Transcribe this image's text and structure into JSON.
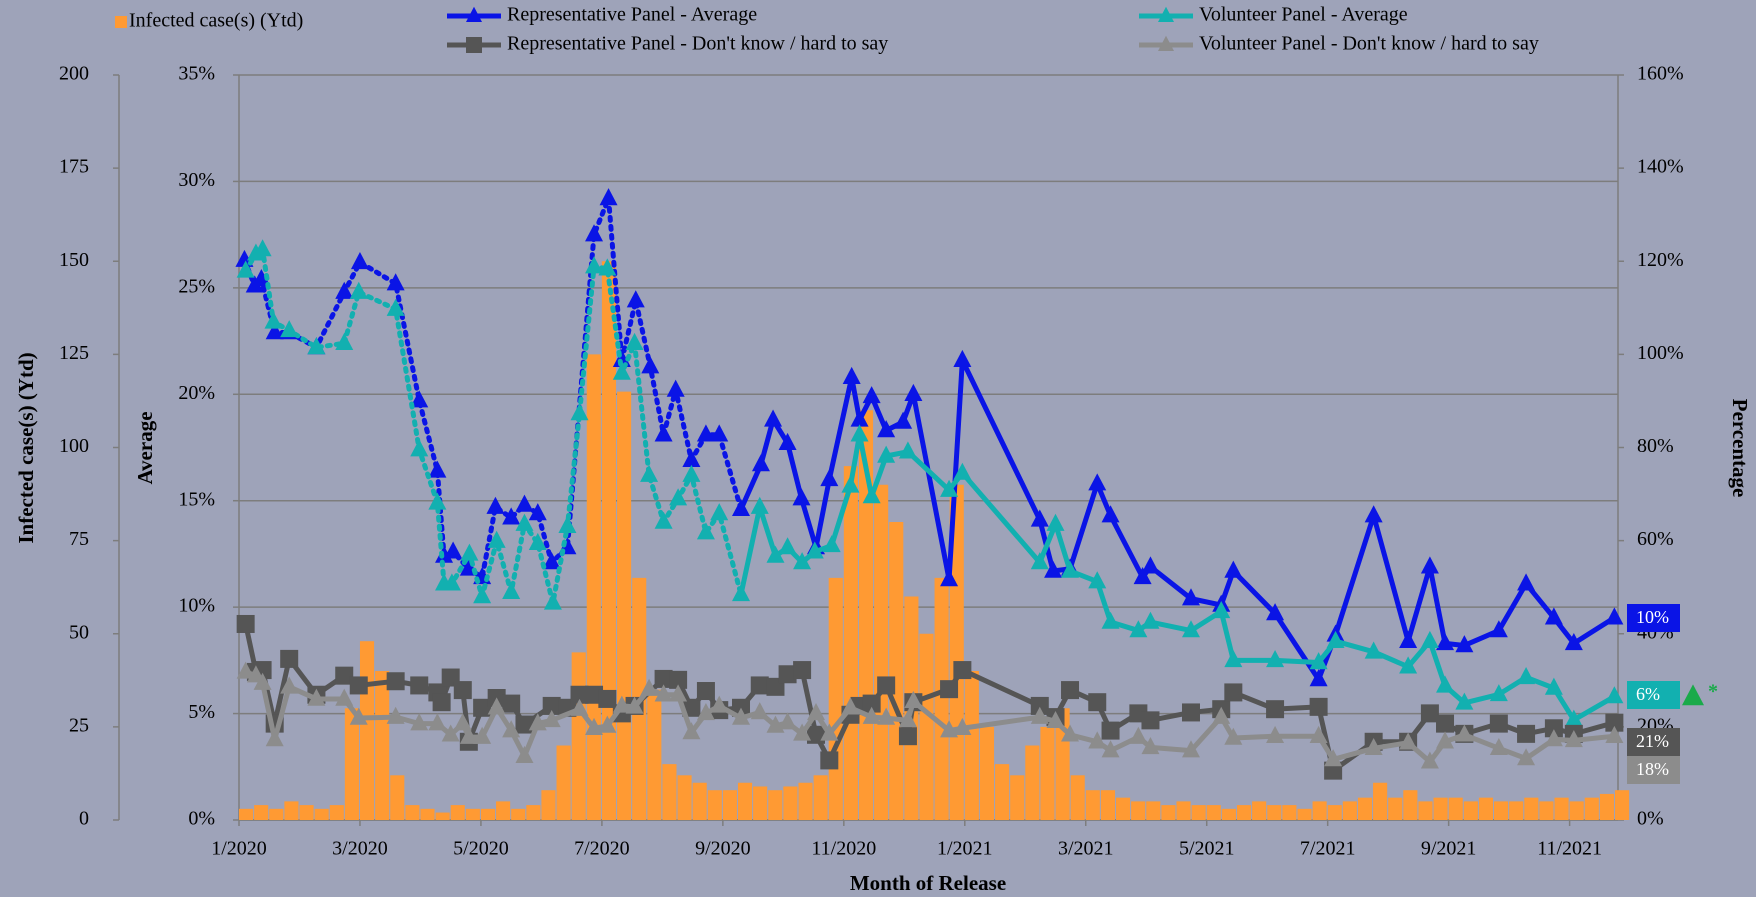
{
  "chart_data": {
    "type": "combo",
    "x_label": "Month of Release",
    "y0_label": "Infected case(s) (Ytd)",
    "y_label": "Average",
    "y2_label": "Percentage",
    "xlim": [
      0,
      22.8
    ],
    "xticks": [
      {
        "value": 0,
        "label": "1/2020"
      },
      {
        "value": 2,
        "label": "3/2020"
      },
      {
        "value": 4,
        "label": "5/2020"
      },
      {
        "value": 6,
        "label": "7/2020"
      },
      {
        "value": 8,
        "label": "9/2020"
      },
      {
        "value": 10,
        "label": "11/2020"
      },
      {
        "value": 12,
        "label": "1/2021"
      },
      {
        "value": 14,
        "label": "3/2021"
      },
      {
        "value": 16,
        "label": "5/2021"
      },
      {
        "value": 18,
        "label": "7/2021"
      },
      {
        "value": 20,
        "label": "9/2021"
      },
      {
        "value": 22,
        "label": "11/2021"
      }
    ],
    "y0lim": [
      0,
      200
    ],
    "y0ticks": [
      0,
      25,
      50,
      75,
      100,
      125,
      150,
      175,
      200
    ],
    "ylim": [
      0,
      35
    ],
    "yticks": [
      {
        "value": 0,
        "label": "0%"
      },
      {
        "value": 5,
        "label": "5%"
      },
      {
        "value": 10,
        "label": "10%"
      },
      {
        "value": 15,
        "label": "15%"
      },
      {
        "value": 20,
        "label": "20%"
      },
      {
        "value": 25,
        "label": "25%"
      },
      {
        "value": 30,
        "label": "30%"
      },
      {
        "value": 35,
        "label": "35%"
      }
    ],
    "y2lim": [
      0,
      160
    ],
    "y2ticks": [
      {
        "value": 0,
        "label": "0%"
      },
      {
        "value": 20,
        "label": "20%"
      },
      {
        "value": 40,
        "label": "40%"
      },
      {
        "value": 60,
        "label": "60%"
      },
      {
        "value": 80,
        "label": "80%"
      },
      {
        "value": 100,
        "label": "100%"
      },
      {
        "value": 120,
        "label": "120%"
      },
      {
        "value": 140,
        "label": "140%"
      },
      {
        "value": 160,
        "label": "160%"
      }
    ],
    "grid": true,
    "series": [
      {
        "name": "Infected case(s) (Ytd)",
        "kind": "bar",
        "axis": "y0",
        "color": "#ff9a33",
        "x": [
          0,
          0.25,
          0.5,
          0.75,
          1,
          1.25,
          1.5,
          1.75,
          2,
          2.25,
          2.5,
          2.75,
          3,
          3.25,
          3.5,
          3.75,
          4,
          4.25,
          4.5,
          4.75,
          5,
          5.25,
          5.5,
          5.75,
          6,
          6.25,
          6.5,
          6.75,
          7,
          7.25,
          7.5,
          7.75,
          8,
          8.25,
          8.5,
          8.75,
          9,
          9.25,
          9.5,
          9.75,
          10,
          10.25,
          10.5,
          10.75,
          11,
          11.25,
          11.5,
          11.75,
          12,
          12.25,
          12.5,
          12.75,
          13,
          13.25,
          13.5,
          13.75,
          14,
          14.25,
          14.5,
          14.75,
          15,
          15.25,
          15.5,
          15.75,
          16,
          16.25,
          16.5,
          16.75,
          17,
          17.25,
          17.5,
          17.75,
          18,
          18.25,
          18.5,
          18.75,
          19,
          19.25,
          19.5,
          19.75,
          20,
          20.25,
          20.5,
          20.75,
          21,
          21.25,
          21.5,
          21.75,
          22,
          22.25,
          22.5,
          22.75
        ],
        "values": [
          3,
          4,
          3,
          5,
          4,
          3,
          4,
          30,
          48,
          40,
          12,
          4,
          3,
          2,
          4,
          3,
          3,
          5,
          3,
          4,
          8,
          20,
          45,
          125,
          150,
          115,
          65,
          35,
          15,
          12,
          10,
          8,
          8,
          10,
          9,
          8,
          9,
          10,
          12,
          65,
          95,
          110,
          90,
          80,
          60,
          50,
          65,
          90,
          40,
          25,
          15,
          12,
          20,
          25,
          30,
          12,
          8,
          8,
          6,
          5,
          5,
          4,
          5,
          4,
          4,
          3,
          4,
          5,
          4,
          4,
          3,
          5,
          4,
          5,
          6,
          10,
          6,
          8,
          5,
          6,
          6,
          5,
          6,
          5,
          5,
          6,
          5,
          6,
          5,
          6,
          7,
          8
        ]
      },
      {
        "name": "Representative Panel - Average",
        "kind": "line",
        "axis": "y",
        "color": "#0a14e6",
        "marker": "triangle",
        "dotted_until": 8.3,
        "end_label": "10%",
        "x": [
          0.09,
          0.26,
          0.37,
          0.59,
          0.83,
          1.28,
          1.74,
          2.0,
          2.59,
          2.98,
          3.28,
          3.39,
          3.54,
          3.8,
          4.02,
          4.24,
          4.5,
          4.72,
          4.94,
          5.17,
          5.43,
          5.87,
          6.11,
          6.33,
          6.56,
          6.8,
          7.02,
          7.22,
          7.48,
          7.72,
          7.94,
          8.3,
          8.63,
          8.83,
          9.07,
          9.3,
          9.54,
          9.76,
          10.13,
          10.26,
          10.46,
          10.7,
          10.98,
          11.15,
          11.74,
          11.96,
          13.24,
          13.46,
          13.74,
          14.19,
          14.41,
          14.94,
          15.07,
          15.74,
          16.24,
          16.44,
          17.13,
          17.85,
          18.13,
          18.76,
          19.33,
          19.69,
          19.94,
          20.26,
          20.83,
          21.28,
          21.74,
          22.07,
          22.74
        ],
        "values": [
          26.3,
          25.1,
          25.4,
          22.9,
          22.9,
          22.2,
          24.8,
          26.2,
          25.2,
          19.7,
          16.4,
          12.4,
          12.6,
          11.8,
          11.4,
          14.7,
          14.2,
          14.8,
          14.4,
          12.1,
          12.8,
          27.5,
          29.2,
          21.6,
          24.4,
          21.3,
          18.1,
          20.2,
          16.9,
          18.1,
          18.1,
          14.6,
          16.7,
          18.8,
          17.7,
          15.1,
          12.8,
          16.0,
          20.8,
          18.8,
          19.9,
          18.3,
          18.7,
          20.0,
          11.3,
          21.6,
          14.1,
          11.7,
          11.8,
          15.8,
          14.3,
          11.4,
          11.9,
          10.4,
          10.1,
          11.7,
          9.7,
          6.6,
          8.7,
          14.3,
          8.4,
          11.9,
          8.3,
          8.2,
          8.9,
          11.1,
          9.5,
          8.3,
          9.5
        ]
      },
      {
        "name": "Volunteer Panel - Average",
        "kind": "line",
        "axis": "y",
        "color": "#12b0b0",
        "marker": "triangle",
        "dotted_until": 8.3,
        "end_label": "6%",
        "x": [
          0.11,
          0.28,
          0.39,
          0.57,
          0.83,
          1.28,
          1.74,
          1.98,
          2.59,
          2.98,
          3.28,
          3.39,
          3.52,
          3.81,
          4.02,
          4.26,
          4.5,
          4.72,
          4.94,
          5.19,
          5.43,
          5.63,
          5.87,
          6.09,
          6.33,
          6.54,
          6.78,
          7.02,
          7.26,
          7.48,
          7.72,
          7.94,
          8.3,
          8.61,
          8.87,
          9.07,
          9.31,
          9.52,
          9.8,
          10.11,
          10.26,
          10.46,
          10.7,
          11.06,
          11.74,
          11.96,
          13.24,
          13.5,
          13.74,
          14.19,
          14.41,
          14.87,
          15.07,
          15.74,
          16.24,
          16.44,
          17.13,
          17.85,
          18.13,
          18.76,
          19.33,
          19.69,
          19.94,
          20.26,
          20.83,
          21.28,
          21.74,
          22.07,
          22.74
        ],
        "values": [
          25.8,
          26.6,
          26.8,
          23.4,
          23.0,
          22.2,
          22.4,
          24.8,
          24.0,
          17.4,
          14.9,
          11.1,
          11.1,
          12.5,
          10.5,
          13.1,
          10.7,
          13.9,
          13.0,
          10.2,
          13.8,
          19.1,
          26.0,
          25.9,
          21.0,
          22.4,
          16.2,
          14.0,
          15.1,
          16.2,
          13.5,
          14.4,
          10.6,
          14.7,
          12.4,
          12.8,
          12.1,
          12.6,
          12.9,
          15.7,
          18.1,
          15.2,
          17.1,
          17.3,
          15.5,
          16.3,
          12.1,
          13.9,
          11.7,
          11.2,
          9.3,
          8.9,
          9.3,
          8.9,
          9.8,
          7.5,
          7.5,
          7.4,
          8.4,
          7.9,
          7.2,
          8.4,
          6.3,
          5.5,
          5.9,
          6.7,
          6.2,
          4.7,
          5.8
        ]
      },
      {
        "name": "Representative Panel - Don't know / hard to say",
        "kind": "line",
        "axis": "y2",
        "color": "#555555",
        "marker": "square",
        "end_label": "21%",
        "x": [
          0.11,
          0.28,
          0.39,
          0.59,
          0.83,
          1.28,
          1.74,
          1.98,
          2.59,
          2.98,
          3.28,
          3.35,
          3.5,
          3.7,
          3.8,
          4.02,
          4.26,
          4.5,
          4.72,
          5.17,
          5.43,
          5.63,
          5.87,
          6.09,
          6.33,
          6.54,
          7.02,
          7.26,
          7.48,
          7.72,
          7.94,
          8.3,
          8.61,
          8.87,
          9.07,
          9.31,
          9.54,
          9.76,
          10.11,
          10.26,
          10.46,
          10.7,
          11.06,
          11.15,
          11.74,
          11.96,
          13.24,
          13.5,
          13.74,
          14.19,
          14.41,
          14.87,
          15.07,
          15.74,
          16.24,
          16.44,
          17.13,
          17.85,
          18.09,
          18.76,
          19.33,
          19.69,
          19.94,
          20.26,
          20.83,
          21.28,
          21.74,
          22.07,
          22.74
        ],
        "values": [
          42.1,
          31.8,
          32.2,
          20.7,
          34.6,
          26.9,
          31.0,
          28.9,
          29.8,
          28.9,
          27.4,
          25.3,
          30.6,
          27.9,
          16.8,
          24.1,
          26.2,
          25.0,
          20.5,
          24.5,
          24.1,
          26.9,
          26.9,
          26.0,
          22.9,
          24.5,
          30.3,
          30.1,
          24.1,
          27.7,
          23.6,
          24.1,
          28.9,
          28.6,
          31.3,
          32.2,
          18.3,
          12.8,
          22.6,
          24.5,
          25.0,
          28.9,
          18.0,
          25.3,
          28.1,
          32.2,
          24.5,
          22.1,
          27.9,
          25.3,
          19.2,
          22.9,
          21.4,
          23.1,
          23.8,
          27.4,
          23.8,
          24.3,
          10.6,
          16.8,
          16.8,
          22.9,
          20.7,
          18.5,
          20.7,
          18.5,
          19.7,
          18.5,
          20.9
        ]
      },
      {
        "name": "Volunteer Panel - Don't know / hard to say",
        "kind": "line",
        "axis": "y2",
        "color": "#8c8c8c",
        "marker": "triangle",
        "end_label": "18%",
        "x": [
          0.11,
          0.28,
          0.39,
          0.59,
          0.83,
          1.28,
          1.74,
          1.98,
          2.59,
          2.98,
          3.28,
          3.5,
          3.7,
          3.8,
          4.02,
          4.26,
          4.5,
          4.72,
          4.94,
          5.17,
          5.63,
          5.87,
          6.09,
          6.33,
          6.54,
          6.78,
          7.02,
          7.26,
          7.48,
          7.72,
          7.94,
          8.3,
          8.61,
          8.87,
          9.07,
          9.31,
          9.54,
          9.76,
          10.11,
          10.46,
          10.7,
          11.06,
          11.15,
          11.74,
          11.96,
          13.24,
          13.5,
          13.74,
          14.19,
          14.41,
          14.87,
          15.07,
          15.74,
          16.24,
          16.44,
          17.13,
          17.85,
          18.09,
          18.76,
          19.33,
          19.69,
          19.94,
          20.26,
          20.83,
          21.28,
          21.74,
          22.07,
          22.74
        ],
        "values": [
          31.8,
          31.0,
          29.4,
          17.3,
          28.6,
          26.0,
          26.0,
          21.9,
          22.1,
          20.7,
          20.7,
          18.3,
          20.7,
          17.8,
          17.8,
          24.1,
          19.2,
          13.7,
          20.7,
          21.4,
          23.8,
          19.7,
          20.2,
          24.5,
          24.3,
          28.1,
          26.9,
          26.9,
          18.8,
          22.9,
          24.5,
          21.9,
          23.1,
          20.2,
          20.9,
          18.5,
          22.9,
          18.5,
          24.1,
          22.1,
          21.9,
          21.4,
          25.5,
          19.2,
          19.7,
          22.1,
          21.2,
          18.3,
          16.8,
          14.9,
          17.8,
          15.6,
          14.9,
          22.1,
          17.6,
          18.0,
          18.0,
          13.0,
          15.4,
          16.6,
          12.5,
          16.8,
          18.3,
          15.4,
          13.2,
          17.3,
          17.1,
          18.0
        ]
      }
    ],
    "annotations": [
      {
        "text": "*",
        "color": "#1aaa4a"
      }
    ]
  }
}
